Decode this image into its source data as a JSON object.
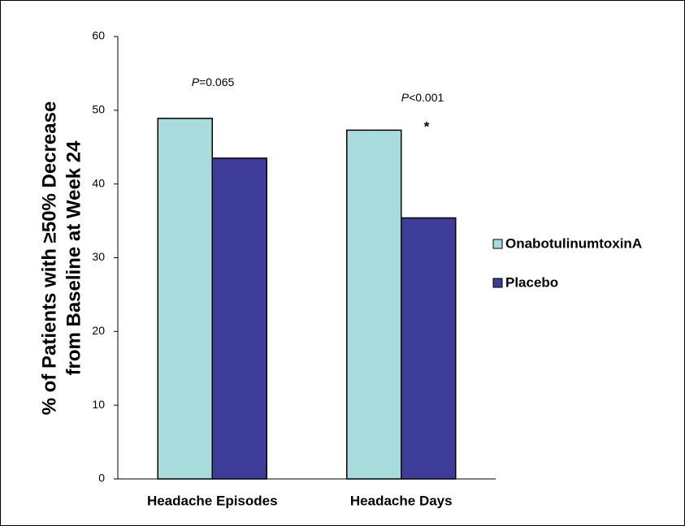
{
  "chart_data": {
    "type": "bar",
    "y_label": [
      "% of Patients with ≥50% Decrease",
      "from Baseline at Week 24"
    ],
    "categories": [
      "Headache Episodes",
      "Headache Days"
    ],
    "series": [
      {
        "name": "OnabotulinumtoxinA",
        "color": "#a8dcdc",
        "values": [
          48.9,
          47.3
        ]
      },
      {
        "name": "Placebo",
        "color": "#3d3d99",
        "values": [
          43.5,
          35.4
        ]
      }
    ],
    "annotations": [
      {
        "italic": "P",
        "text": "=0.065"
      },
      {
        "italic": "P",
        "text": "<0.001",
        "marker": "*"
      }
    ],
    "ylim": [
      0,
      60
    ],
    "yticks": [
      0,
      10,
      20,
      30,
      40,
      50,
      60
    ],
    "grid": false,
    "legend": "right"
  }
}
